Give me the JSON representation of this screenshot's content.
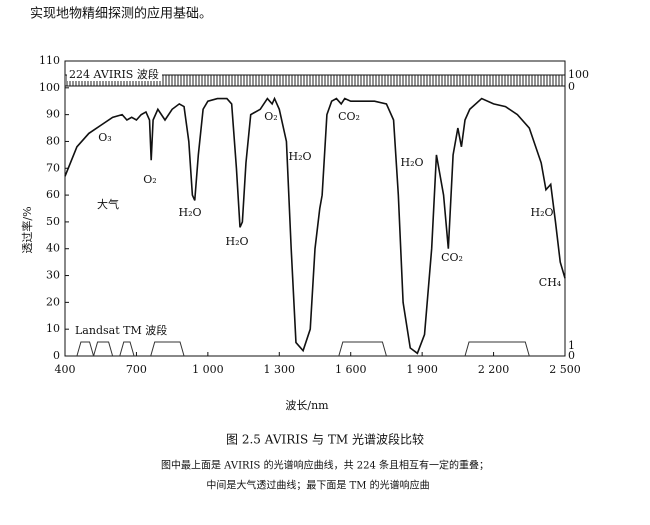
{
  "page_text": "实现地物精细探测的应用基础。",
  "chart_data": {
    "type": "line",
    "x": [
      400,
      450,
      500,
      550,
      600,
      640,
      660,
      680,
      700,
      720,
      740,
      755,
      762,
      770,
      790,
      820,
      850,
      880,
      900,
      920,
      935,
      945,
      960,
      980,
      1000,
      1040,
      1080,
      1100,
      1120,
      1135,
      1145,
      1160,
      1180,
      1220,
      1250,
      1270,
      1280,
      1300,
      1330,
      1350,
      1370,
      1400,
      1430,
      1450,
      1470,
      1480,
      1500,
      1520,
      1540,
      1560,
      1575,
      1600,
      1700,
      1750,
      1780,
      1800,
      1820,
      1850,
      1880,
      1910,
      1940,
      1960,
      1990,
      2010,
      2030,
      2050,
      2065,
      2080,
      2100,
      2150,
      2200,
      2250,
      2300,
      2350,
      2400,
      2420,
      2440,
      2460,
      2480,
      2500
    ],
    "series": [
      {
        "color": "#111111",
        "values": [
          67,
          78,
          83,
          86,
          89,
          90,
          88,
          89,
          88,
          90,
          91,
          88,
          73,
          88,
          92,
          88,
          92,
          94,
          93,
          80,
          60,
          58,
          75,
          92,
          95,
          96,
          96,
          94,
          70,
          48,
          50,
          72,
          90,
          92,
          96,
          94,
          96,
          92,
          80,
          40,
          5,
          2,
          10,
          40,
          55,
          60,
          90,
          95,
          96,
          94,
          96,
          95,
          95,
          94,
          88,
          60,
          20,
          3,
          1,
          8,
          40,
          75,
          60,
          40,
          75,
          85,
          78,
          88,
          92,
          96,
          94,
          93,
          90,
          85,
          72,
          62,
          64,
          50,
          35,
          29
        ]
      }
    ],
    "xlim": [
      400,
      2500
    ],
    "ylim": [
      0,
      110
    ],
    "xticks": [
      400,
      700,
      {
        "value": 1000,
        "label": "1 000"
      },
      {
        "value": 1300,
        "label": "1 300"
      },
      {
        "value": 1600,
        "label": "1 600"
      },
      {
        "value": 1900,
        "label": "1 900"
      },
      {
        "value": 2200,
        "label": "2 200"
      },
      {
        "value": 2500,
        "label": "2 500"
      }
    ],
    "yticks": [
      0,
      10,
      20,
      30,
      40,
      50,
      60,
      70,
      80,
      90,
      100,
      110
    ],
    "x_label": "波长/nm",
    "y_label": "透过率/%",
    "tm_bands": [
      {
        "start": 450,
        "end": 520
      },
      {
        "start": 520,
        "end": 600
      },
      {
        "start": 630,
        "end": 690
      },
      {
        "start": 760,
        "end": 900
      },
      {
        "start": 1550,
        "end": 1750
      },
      {
        "start": 2080,
        "end": 2350
      }
    ],
    "aviris_label": "224 AVIRIS 波段",
    "tm_label": "Landsat TM 波段",
    "right_labels": [
      "100",
      "0",
      "1",
      "0"
    ],
    "annotations": [
      "O₃",
      "O₂",
      "H₂O",
      "H₂O",
      "O₂",
      "CO₂",
      "H₂O",
      "H₂O",
      "CO₂",
      "H₂O",
      "CH₄",
      "大气"
    ]
  },
  "caption": {
    "title": "图 2.5    AVIRIS 与 TM 光谱波段比较",
    "lines": [
      "图中最上面是 AVIRIS 的光谱响应曲线，共 224 条且相互有一定的重叠；",
      "中间是大气透过曲线；最下面是 TM 的光谱响应曲"
    ]
  }
}
